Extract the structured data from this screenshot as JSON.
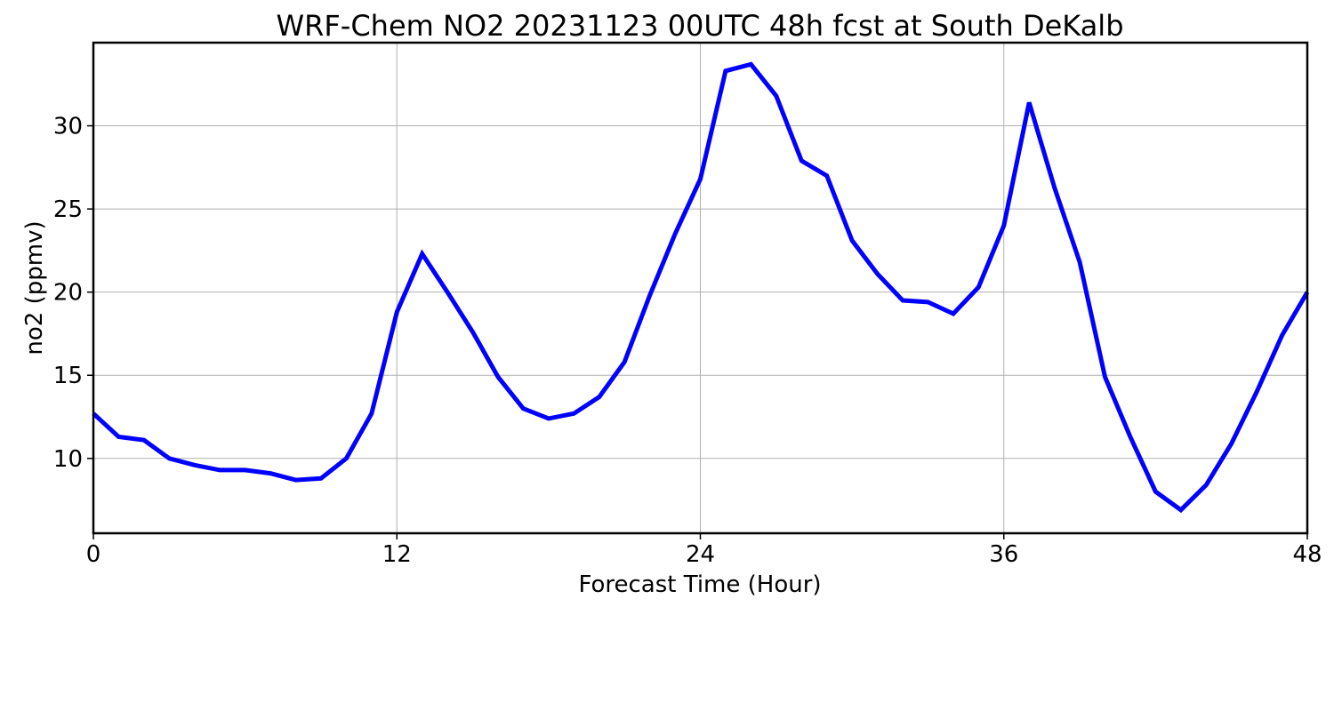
{
  "chart_data": {
    "type": "line",
    "title": "WRF-Chem NO2  20231123 00UTC 48h fcst at South DeKalb",
    "xlabel": "Forecast Time (Hour)",
    "ylabel": "no2  (ppmv)",
    "xlim": [
      0,
      48
    ],
    "ylim": [
      5.5,
      35
    ],
    "xticks": [
      0,
      12,
      24,
      36,
      48
    ],
    "yticks": [
      10,
      15,
      20,
      25,
      30
    ],
    "grid": true,
    "line_color": "#0000ff",
    "series": [
      {
        "x": [
          0,
          1,
          2,
          3,
          4,
          5,
          6,
          7,
          8,
          9,
          10,
          11,
          12,
          13,
          14,
          15,
          16,
          17,
          18,
          19,
          20,
          21,
          22,
          23,
          24,
          25,
          26,
          27,
          28,
          29,
          30,
          31,
          32,
          33,
          34,
          35,
          36,
          37,
          38,
          39,
          40,
          41,
          42,
          43,
          44,
          45,
          46,
          47,
          48
        ],
        "values": [
          12.7,
          11.3,
          11.1,
          10.0,
          9.6,
          9.3,
          9.3,
          9.1,
          8.7,
          8.8,
          10.0,
          12.7,
          18.8,
          22.3,
          20.0,
          17.6,
          14.9,
          13.0,
          12.4,
          12.7,
          13.7,
          15.8,
          19.8,
          23.5,
          26.8,
          33.3,
          33.7,
          31.8,
          27.9,
          27.0,
          23.1,
          21.1,
          19.5,
          19.4,
          18.7,
          20.3,
          24.0,
          31.4,
          26.3,
          21.8,
          14.9,
          11.3,
          8.0,
          6.9,
          8.4,
          10.9,
          14.0,
          17.4,
          20.0
        ]
      }
    ]
  }
}
